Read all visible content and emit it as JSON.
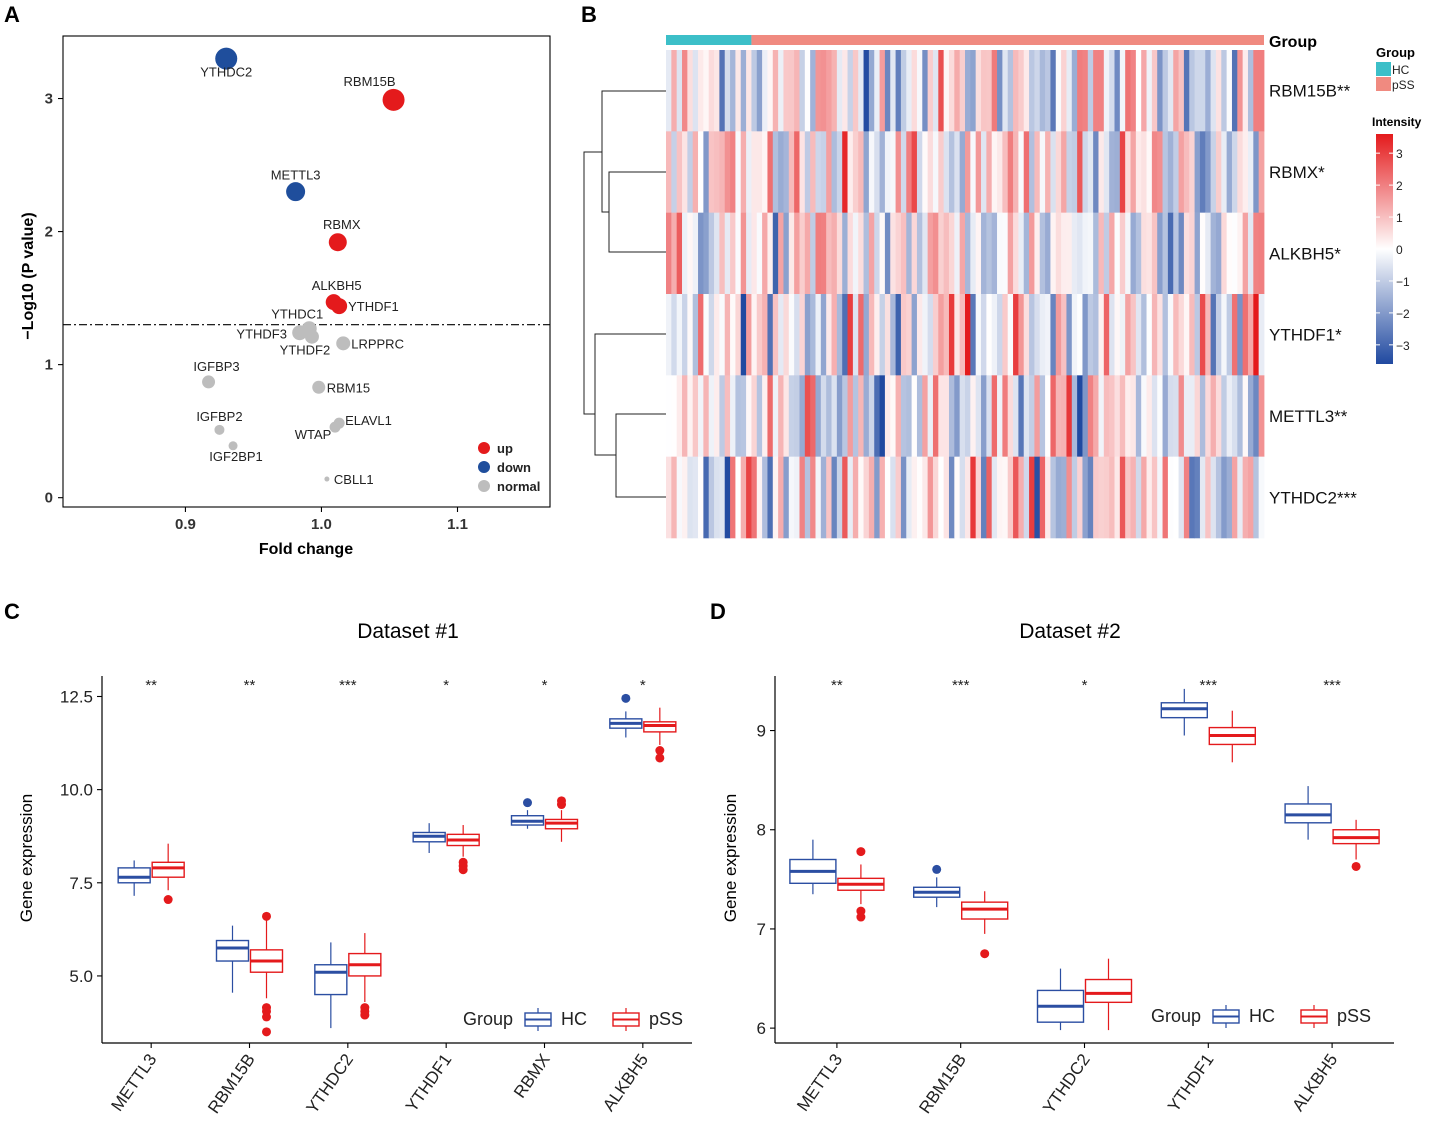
{
  "panels": {
    "A": {
      "label": "A"
    },
    "B": {
      "label": "B"
    },
    "C": {
      "label": "C"
    },
    "D": {
      "label": "D"
    }
  },
  "colors": {
    "up": "#e41a1c",
    "down": "#1f4e9c",
    "normal": "#bdbdbd",
    "hc_box": "#2b4ea2",
    "pss_box": "#e41a1c",
    "group_hc": "#3cbfc8",
    "group_pss": "#f08a80"
  },
  "chart_data": [
    {
      "id": "A",
      "type": "scatter",
      "xlabel": "Fold change",
      "ylabel": "−Log10 (P value)",
      "xlim": [
        0.81,
        1.168
      ],
      "ylim": [
        -0.07,
        3.47
      ],
      "xticks": [
        0.9,
        1.0,
        1.1
      ],
      "xtick_labels": [
        "0.9",
        "1.0",
        "1.1"
      ],
      "yticks": [
        0,
        1,
        2,
        3
      ],
      "ytick_labels": [
        "0",
        "1",
        "2",
        "3"
      ],
      "threshold": 1.3,
      "legend": {
        "position": "bottom-right",
        "items": [
          {
            "key": "up",
            "label": "up"
          },
          {
            "key": "down",
            "label": "down"
          },
          {
            "key": "normal",
            "label": "normal"
          }
        ]
      },
      "points": [
        {
          "name": "YTHDC2",
          "x": 0.93,
          "y": 3.3,
          "group": "down",
          "size": 11
        },
        {
          "name": "RBM15B",
          "x": 1.053,
          "y": 2.99,
          "group": "up",
          "size": 11
        },
        {
          "name": "METTL3",
          "x": 0.981,
          "y": 2.3,
          "group": "down",
          "size": 9.5
        },
        {
          "name": "RBMX",
          "x": 1.012,
          "y": 1.92,
          "group": "up",
          "size": 9
        },
        {
          "name": "ALKBH5",
          "x": 1.009,
          "y": 1.47,
          "group": "up",
          "size": 8
        },
        {
          "name": "YTHDF1",
          "x": 1.013,
          "y": 1.44,
          "group": "up",
          "size": 8
        },
        {
          "name": "YTHDC1",
          "x": 0.991,
          "y": 1.27,
          "group": "normal",
          "size": 7.5
        },
        {
          "name": "YTHDF3",
          "x": 0.984,
          "y": 1.24,
          "group": "normal",
          "size": 7.5
        },
        {
          "name": "YTHDF2",
          "x": 0.993,
          "y": 1.21,
          "group": "normal",
          "size": 7
        },
        {
          "name": "LRPPRC",
          "x": 1.016,
          "y": 1.16,
          "group": "normal",
          "size": 7
        },
        {
          "name": "IGFBP3",
          "x": 0.917,
          "y": 0.87,
          "group": "normal",
          "size": 6.5
        },
        {
          "name": "RBM15",
          "x": 0.998,
          "y": 0.83,
          "group": "normal",
          "size": 6.5
        },
        {
          "name": "ELAVL1",
          "x": 1.013,
          "y": 0.56,
          "group": "normal",
          "size": 5.5
        },
        {
          "name": "WTAP",
          "x": 1.01,
          "y": 0.53,
          "group": "normal",
          "size": 5.5
        },
        {
          "name": "IGFBP2",
          "x": 0.925,
          "y": 0.51,
          "group": "normal",
          "size": 5
        },
        {
          "name": "IGF2BP1",
          "x": 0.935,
          "y": 0.39,
          "group": "normal",
          "size": 4.5
        },
        {
          "name": "CBLL1",
          "x": 1.004,
          "y": 0.14,
          "group": "normal",
          "size": 2.5
        }
      ]
    },
    {
      "id": "B",
      "type": "heatmap",
      "rows": [
        "RBM15B**",
        "RBMX*",
        "ALKBH5*",
        "YTHDF1*",
        "METTL3**",
        "YTHDC2***"
      ],
      "n_hc": 16,
      "n_pss": 96,
      "annotation_label": "Group",
      "legend_group_title": "Group",
      "legend_groups": [
        "HC",
        "pSS"
      ],
      "legend_scale_title": "Intensity",
      "scale_ticks": [
        3,
        2,
        1,
        0,
        -1,
        -2,
        -3
      ],
      "scale_tick_labels": [
        "3",
        "2",
        "1",
        "0",
        "−1",
        "−2",
        "−3"
      ],
      "value_range": [
        -3.6,
        3.6
      ],
      "colors": {
        "low": "#2049a0",
        "mid": "#ffffff",
        "high": "#e41a1c"
      }
    },
    {
      "id": "C",
      "type": "boxplot",
      "title": "Dataset #1",
      "ylabel": "Gene expression",
      "ylim": [
        3.2,
        13.05
      ],
      "yticks": [
        5.0,
        7.5,
        10.0,
        12.5
      ],
      "ytick_labels": [
        "5.0",
        "7.5",
        "10.0",
        "12.5"
      ],
      "categories": [
        "METTL3",
        "RBM15B",
        "YTHDC2",
        "YTHDF1",
        "RBMX",
        "ALKBH5"
      ],
      "significance": [
        "**",
        "**",
        "***",
        "*",
        "*",
        "*"
      ],
      "legend": {
        "title": "Group",
        "items": [
          "HC",
          "pSS"
        ]
      },
      "series": [
        {
          "name": "HC",
          "boxes": [
            {
              "min": 7.15,
              "q1": 7.5,
              "median": 7.65,
              "q3": 7.9,
              "max": 8.1,
              "outliers": []
            },
            {
              "min": 4.55,
              "q1": 5.4,
              "median": 5.75,
              "q3": 5.95,
              "max": 6.35,
              "outliers": []
            },
            {
              "min": 3.6,
              "q1": 4.5,
              "median": 5.1,
              "q3": 5.3,
              "max": 5.9,
              "outliers": []
            },
            {
              "min": 8.3,
              "q1": 8.6,
              "median": 8.75,
              "q3": 8.85,
              "max": 9.1,
              "outliers": []
            },
            {
              "min": 8.95,
              "q1": 9.05,
              "median": 9.15,
              "q3": 9.3,
              "max": 9.45,
              "outliers": [
                9.65
              ]
            },
            {
              "min": 11.4,
              "q1": 11.65,
              "median": 11.78,
              "q3": 11.9,
              "max": 12.1,
              "outliers": [
                12.45
              ]
            }
          ]
        },
        {
          "name": "pSS",
          "boxes": [
            {
              "min": 7.3,
              "q1": 7.65,
              "median": 7.9,
              "q3": 8.05,
              "max": 8.55,
              "outliers": [
                7.05
              ]
            },
            {
              "min": 4.4,
              "q1": 5.1,
              "median": 5.4,
              "q3": 5.7,
              "max": 6.5,
              "outliers": [
                3.5,
                3.9,
                4.05,
                4.15,
                6.6
              ]
            },
            {
              "min": 4.3,
              "q1": 5.0,
              "median": 5.3,
              "q3": 5.6,
              "max": 6.15,
              "outliers": [
                3.95,
                4.05,
                4.15
              ]
            },
            {
              "min": 8.2,
              "q1": 8.5,
              "median": 8.65,
              "q3": 8.8,
              "max": 9.05,
              "outliers": [
                7.85,
                7.95,
                8.05
              ]
            },
            {
              "min": 8.6,
              "q1": 8.95,
              "median": 9.1,
              "q3": 9.2,
              "max": 9.45,
              "outliers": [
                9.6,
                9.7
              ]
            },
            {
              "min": 11.2,
              "q1": 11.55,
              "median": 11.72,
              "q3": 11.82,
              "max": 12.2,
              "outliers": [
                10.85,
                11.05
              ]
            }
          ]
        }
      ]
    },
    {
      "id": "D",
      "type": "boxplot",
      "title": "Dataset #2",
      "ylabel": "Gene expression",
      "ylim": [
        5.85,
        9.55
      ],
      "yticks": [
        6,
        7,
        8,
        9
      ],
      "ytick_labels": [
        "6",
        "7",
        "8",
        "9"
      ],
      "categories": [
        "METTL3",
        "RBM15B",
        "YTHDC2",
        "YTHDF1",
        "ALKBH5"
      ],
      "significance": [
        "**",
        "***",
        "*",
        "***",
        "***"
      ],
      "legend": {
        "title": "Group",
        "items": [
          "HC",
          "pSS"
        ]
      },
      "series": [
        {
          "name": "HC",
          "boxes": [
            {
              "min": 7.35,
              "q1": 7.46,
              "median": 7.58,
              "q3": 7.7,
              "max": 7.9,
              "outliers": []
            },
            {
              "min": 7.22,
              "q1": 7.32,
              "median": 7.37,
              "q3": 7.42,
              "max": 7.52,
              "outliers": [
                7.6
              ]
            },
            {
              "min": 5.98,
              "q1": 6.06,
              "median": 6.22,
              "q3": 6.38,
              "max": 6.6,
              "outliers": []
            },
            {
              "min": 8.95,
              "q1": 9.13,
              "median": 9.22,
              "q3": 9.28,
              "max": 9.42,
              "outliers": []
            },
            {
              "min": 7.9,
              "q1": 8.07,
              "median": 8.15,
              "q3": 8.26,
              "max": 8.44,
              "outliers": []
            }
          ]
        },
        {
          "name": "pSS",
          "boxes": [
            {
              "min": 7.25,
              "q1": 7.39,
              "median": 7.45,
              "q3": 7.51,
              "max": 7.65,
              "outliers": [
                7.12,
                7.18,
                7.78
              ]
            },
            {
              "min": 6.95,
              "q1": 7.1,
              "median": 7.2,
              "q3": 7.27,
              "max": 7.38,
              "outliers": [
                6.75
              ]
            },
            {
              "min": 5.98,
              "q1": 6.26,
              "median": 6.35,
              "q3": 6.49,
              "max": 6.7,
              "outliers": []
            },
            {
              "min": 8.68,
              "q1": 8.86,
              "median": 8.95,
              "q3": 9.03,
              "max": 9.2,
              "outliers": []
            },
            {
              "min": 7.7,
              "q1": 7.86,
              "median": 7.92,
              "q3": 8.0,
              "max": 8.1,
              "outliers": [
                7.63
              ]
            }
          ]
        }
      ]
    }
  ]
}
